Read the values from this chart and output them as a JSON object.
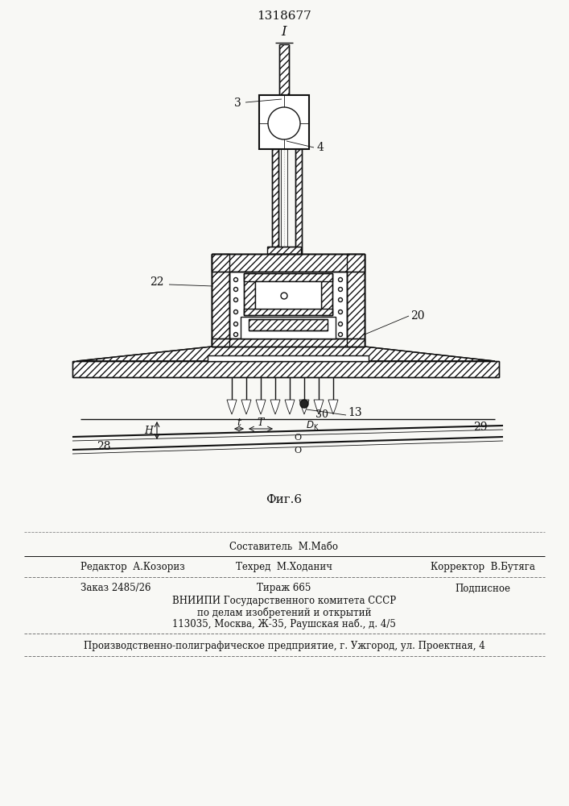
{
  "patent_number": "1318677",
  "fig_label": "Фиг.6",
  "bg": "#f8f8f5",
  "lc": "#111111",
  "footer": {
    "composer_label": "Составитель",
    "composer_name": "М.Мабо",
    "editor_label": "Редактор",
    "editor_name": "А.Козориз",
    "techred_label": "Техред",
    "techred_name": "М.Ходанич",
    "corrector_label": "Корректор",
    "corrector_name": "В.Бутяга",
    "order": "Заказ 2485/26",
    "tirazh": "Тираж 665",
    "podpisnoe": "Подписное",
    "vniipи_line1": "ВНИИПИ Государственного комитета СССР",
    "vniipи_line2": "по делам изобретений и открытий",
    "vniipи_line3": "113035, Москва, Ж-35, Раушская наб., д. 4/5",
    "factory_line": "Производственно-полиграфическое предприятие, г. Ужгород, ул. Проектная, 4"
  }
}
